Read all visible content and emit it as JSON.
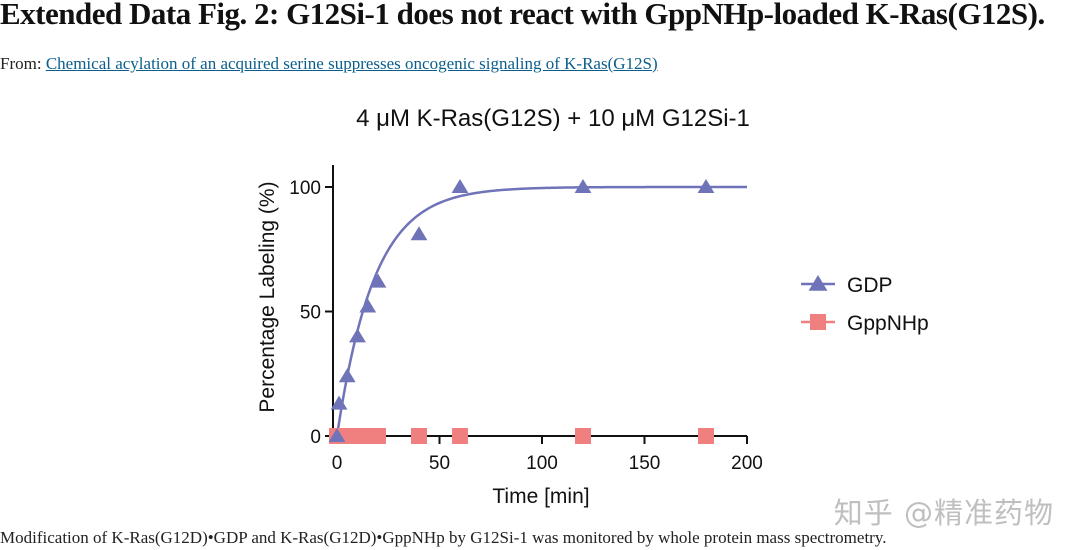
{
  "page": {
    "figure_title": "Extended Data Fig. 2: G12Si-1 does not react with GppNHp-loaded K-Ras(G12S).",
    "from_prefix": "From: ",
    "from_link": "Chemical acylation of an acquired serine suppresses oncogenic signaling of K-Ras(G12S)",
    "caption": "Modification of K-Ras(G12D)•GDP and K-Ras(G12D)•GppNHp by G12Si-1 was monitored by whole protein mass spectrometry.",
    "watermark": "知乎 @精准药物"
  },
  "chart_data": {
    "type": "scatter",
    "title": "4 μM K-Ras(G12S) + 10 μM G12Si-1",
    "xlabel": "Time [min]",
    "ylabel": "Percentage Labeling (%)",
    "xlim": [
      0,
      200
    ],
    "ylim": [
      0,
      100
    ],
    "xticks": [
      0,
      50,
      100,
      150,
      200
    ],
    "yticks": [
      0,
      50,
      100
    ],
    "legend_position": "right",
    "series": [
      {
        "name": "GDP",
        "marker": "triangle",
        "color": "#6f74b8",
        "x": [
          0,
          1,
          5,
          10,
          15,
          20,
          40,
          60,
          120,
          180
        ],
        "y": [
          0,
          13,
          24,
          40,
          52,
          62,
          81,
          100,
          100,
          100
        ],
        "fit": {
          "model": "one-phase association",
          "plateau": 100,
          "k": 0.055
        }
      },
      {
        "name": "GppNHp",
        "marker": "square",
        "color": "#f08080",
        "x": [
          0,
          1,
          5,
          10,
          15,
          20,
          40,
          60,
          120,
          180
        ],
        "y": [
          0,
          0,
          0,
          0,
          0,
          0,
          0,
          0,
          0,
          0
        ]
      }
    ]
  }
}
